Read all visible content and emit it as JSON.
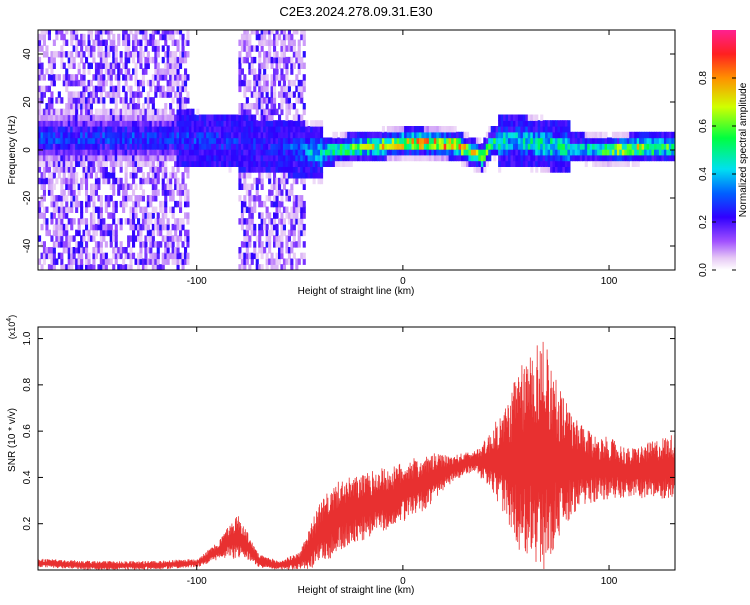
{
  "title": "C2E3.2024.278.09.31.E30",
  "chart_data": [
    {
      "type": "heatmap",
      "xlabel": "Height of straight line (km)",
      "ylabel": "Frequency (Hz)",
      "xlim": [
        -177,
        132
      ],
      "ylim": [
        -50,
        50
      ],
      "x_ticks": [
        -100,
        0,
        100
      ],
      "y_ticks": [
        -40,
        -20,
        0,
        20,
        40
      ],
      "colorbar": {
        "label": "Normalized spectral amplitude",
        "range": [
          0,
          1
        ],
        "ticks": [
          0.0,
          0.2,
          0.4,
          0.6,
          0.8
        ],
        "tick_labels": [
          "0.0",
          "0.2",
          "0.4",
          "0.6",
          "0.8"
        ],
        "colormap": "rainbow (white-violet-blue-cyan-green-yellow-red)"
      },
      "ridge_center_hz": [
        [
          -110,
          4
        ],
        [
          -90,
          3
        ],
        [
          -70,
          1
        ],
        [
          -50,
          -1
        ],
        [
          -40,
          -2
        ],
        [
          -25,
          0
        ],
        [
          -10,
          1
        ],
        [
          0,
          2
        ],
        [
          10,
          2
        ],
        [
          25,
          1
        ],
        [
          38,
          -4
        ],
        [
          42,
          2
        ],
        [
          55,
          3
        ],
        [
          70,
          1
        ],
        [
          80,
          0
        ],
        [
          100,
          -1
        ],
        [
          115,
          0
        ],
        [
          130,
          0
        ]
      ],
      "ridge_peak_amplitude": [
        [
          -110,
          0.35
        ],
        [
          -90,
          0.35
        ],
        [
          -70,
          0.3
        ],
        [
          -50,
          0.4
        ],
        [
          -30,
          0.7
        ],
        [
          -10,
          0.85
        ],
        [
          5,
          0.95
        ],
        [
          20,
          0.95
        ],
        [
          38,
          0.8
        ],
        [
          50,
          0.5
        ],
        [
          65,
          0.6
        ],
        [
          85,
          0.55
        ],
        [
          110,
          0.85
        ],
        [
          130,
          0.7
        ]
      ],
      "noise_bands_x": [
        [
          -177,
          -105
        ],
        [
          -80,
          -48
        ]
      ]
    },
    {
      "type": "line",
      "xlabel": "Height of straight line (km)",
      "ylabel": "SNR (10 * v/v)",
      "y_multiplier": "(x10^4)",
      "xlim": [
        -177,
        132
      ],
      "ylim": [
        0,
        1.05
      ],
      "x_ticks": [
        -100,
        0,
        100
      ],
      "y_ticks": [
        0.2,
        0.4,
        0.6,
        0.8,
        1.0
      ],
      "color": "#e83030",
      "envelope": {
        "x": [
          -177,
          -150,
          -120,
          -100,
          -90,
          -85,
          -80,
          -75,
          -70,
          -60,
          -50,
          -45,
          -40,
          -35,
          -30,
          -20,
          -10,
          -5,
          0,
          5,
          10,
          15,
          20,
          25,
          30,
          35,
          40,
          45,
          50,
          55,
          60,
          62,
          65,
          68,
          70,
          72,
          75,
          80,
          85,
          90,
          95,
          100,
          110,
          120,
          125,
          132
        ],
        "mean": [
          0.03,
          0.02,
          0.02,
          0.03,
          0.08,
          0.12,
          0.14,
          0.1,
          0.04,
          0.02,
          0.04,
          0.1,
          0.16,
          0.2,
          0.24,
          0.27,
          0.3,
          0.31,
          0.34,
          0.36,
          0.37,
          0.4,
          0.42,
          0.44,
          0.46,
          0.47,
          0.47,
          0.47,
          0.47,
          0.47,
          0.48,
          0.5,
          0.5,
          0.5,
          0.5,
          0.48,
          0.47,
          0.46,
          0.45,
          0.44,
          0.44,
          0.44,
          0.42,
          0.43,
          0.44,
          0.45
        ],
        "amplitude": [
          0.02,
          0.02,
          0.02,
          0.02,
          0.04,
          0.07,
          0.11,
          0.06,
          0.03,
          0.02,
          0.04,
          0.1,
          0.14,
          0.16,
          0.16,
          0.15,
          0.15,
          0.14,
          0.14,
          0.13,
          0.12,
          0.11,
          0.08,
          0.06,
          0.05,
          0.05,
          0.1,
          0.18,
          0.26,
          0.4,
          0.46,
          0.5,
          0.52,
          0.54,
          0.54,
          0.44,
          0.36,
          0.27,
          0.2,
          0.17,
          0.15,
          0.14,
          0.11,
          0.13,
          0.14,
          0.15
        ]
      }
    }
  ]
}
